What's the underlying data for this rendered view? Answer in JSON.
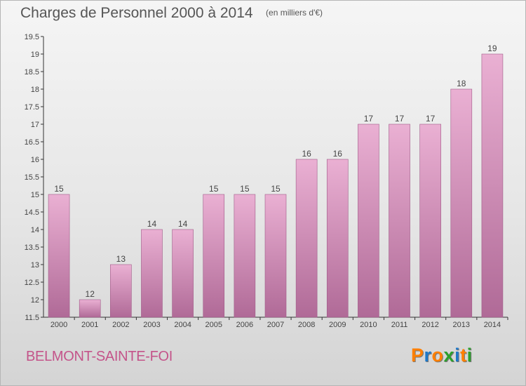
{
  "title": "Charges de Personnel 2000 à 2014",
  "subtitle": "(en milliers d'€)",
  "place_name": "BELMONT-SAINTE-FOI",
  "logo": {
    "text": "Proxiti",
    "letter_colors": [
      "#ff7f00",
      "#1e78c8",
      "#ff7f00",
      "#2ca02c",
      "#1e78c8",
      "#ff7f00",
      "#2ca02c"
    ]
  },
  "colors": {
    "bar_top": "#eab0d3",
    "bar_bottom": "#b06a97",
    "bar_stroke": "#a05a88",
    "place_text": "#c4548a",
    "axis_text": "#444444"
  },
  "chart_data": {
    "type": "bar",
    "categories": [
      "2000",
      "2001",
      "2002",
      "2003",
      "2004",
      "2005",
      "2006",
      "2007",
      "2008",
      "2009",
      "2010",
      "2011",
      "2012",
      "2013",
      "2014"
    ],
    "values": [
      15,
      12,
      13,
      14,
      14,
      15,
      15,
      15,
      16,
      16,
      17,
      17,
      17,
      18,
      19
    ],
    "data_labels": [
      "15",
      "12",
      "13",
      "14",
      "14",
      "15",
      "15",
      "15",
      "16",
      "16",
      "17",
      "17",
      "17",
      "18",
      "19"
    ],
    "title": "Charges de Personnel 2000 à 2014",
    "xlabel": "",
    "ylabel": "",
    "ylim": [
      11.5,
      19.5
    ],
    "yticks": [
      11.5,
      12,
      12.5,
      13,
      13.5,
      14,
      14.5,
      15,
      15.5,
      16,
      16.5,
      17,
      17.5,
      18,
      18.5,
      19,
      19.5
    ],
    "ytick_labels": [
      "11.5",
      "12",
      "12.5",
      "13",
      "13.5",
      "14",
      "14.5",
      "15",
      "15.5",
      "16",
      "16.5",
      "17",
      "17.5",
      "18",
      "18.5",
      "19",
      "19.5"
    ],
    "grid": false,
    "legend": "none"
  }
}
